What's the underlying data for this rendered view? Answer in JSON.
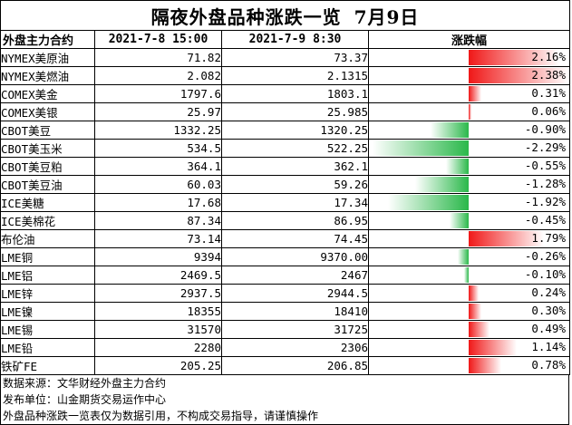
{
  "title": {
    "main": "隔夜外盘品种涨跌一览",
    "date": "7月9日"
  },
  "columns": {
    "name": "外盘主力合约",
    "prev": "2021-7-8 15:00",
    "curr": "2021-7-9 8:30",
    "change": "涨跌幅"
  },
  "colors": {
    "up": "#f01818",
    "down": "#2ab84a"
  },
  "rows": [
    {
      "name": "NYMEX美原油",
      "prev": "71.82",
      "curr": "73.37",
      "pct": "2.16%",
      "value": 2.16
    },
    {
      "name": "NYMEX美燃油",
      "prev": "2.082",
      "curr": "2.1315",
      "pct": "2.38%",
      "value": 2.38
    },
    {
      "name": "COMEX美金",
      "prev": "1797.6",
      "curr": "1803.1",
      "pct": "0.31%",
      "value": 0.31
    },
    {
      "name": "COMEX美银",
      "prev": "25.97",
      "curr": "25.985",
      "pct": "0.06%",
      "value": 0.06
    },
    {
      "name": "CBOT美豆",
      "prev": "1332.25",
      "curr": "1320.25",
      "pct": "-0.90%",
      "value": -0.9
    },
    {
      "name": "CBOT美玉米",
      "prev": "534.5",
      "curr": "522.25",
      "pct": "-2.29%",
      "value": -2.29
    },
    {
      "name": "CBOT美豆粕",
      "prev": "364.1",
      "curr": "362.1",
      "pct": "-0.55%",
      "value": -0.55
    },
    {
      "name": "CBOT美豆油",
      "prev": "60.03",
      "curr": "59.26",
      "pct": "-1.28%",
      "value": -1.28
    },
    {
      "name": "ICE美糖",
      "prev": "17.68",
      "curr": "17.34",
      "pct": "-1.92%",
      "value": -1.92
    },
    {
      "name": "ICE美棉花",
      "prev": "87.34",
      "curr": "86.95",
      "pct": "-0.45%",
      "value": -0.45
    },
    {
      "name": "布伦油",
      "prev": "73.14",
      "curr": "74.45",
      "pct": "1.79%",
      "value": 1.79
    },
    {
      "name": "LME铜",
      "prev": "9394",
      "curr": "9370.00",
      "pct": "-0.26%",
      "value": -0.26
    },
    {
      "name": "LME铝",
      "prev": "2469.5",
      "curr": "2467",
      "pct": "-0.10%",
      "value": -0.1
    },
    {
      "name": "LME锌",
      "prev": "2937.5",
      "curr": "2944.5",
      "pct": "0.24%",
      "value": 0.24
    },
    {
      "name": "LME镍",
      "prev": "18355",
      "curr": "18410",
      "pct": "0.30%",
      "value": 0.3
    },
    {
      "name": "LME锡",
      "prev": "31570",
      "curr": "31725",
      "pct": "0.49%",
      "value": 0.49
    },
    {
      "name": "LME铅",
      "prev": "2280",
      "curr": "2306",
      "pct": "1.14%",
      "value": 1.14
    },
    {
      "name": "铁矿FE",
      "prev": "205.25",
      "curr": "206.85",
      "pct": "0.78%",
      "value": 0.78
    }
  ],
  "footer": [
    "数据来源：文华财经外盘主力合约",
    "发布单位：山金期货交易运作中心",
    "外盘品种涨跌一览表仅为数据引用，不构成交易指导，请谨慎操作"
  ]
}
